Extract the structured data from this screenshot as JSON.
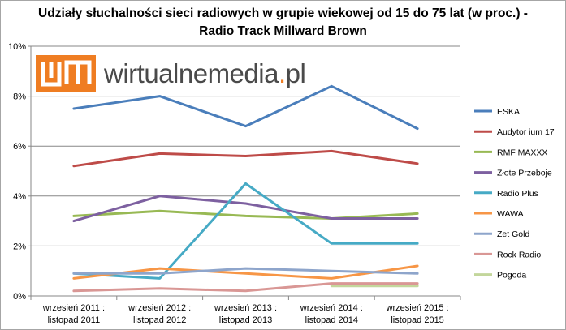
{
  "chart_data": {
    "type": "line",
    "title_line1": "Udziały słuchalności sieci radiowych w grupie wiekowej od 15 do 75 lat (w proc.) -",
    "title_line2": "Radio Track Millward Brown",
    "categories": [
      [
        "wrzesień 2011 :",
        "listopad 2011"
      ],
      [
        "wrzesień 2012 :",
        "listopad 2012"
      ],
      [
        "wrzesień 2013 :",
        "listopad 2013"
      ],
      [
        "wrzesień 2014 :",
        "listopad 2014"
      ],
      [
        "wrzesień 2015 :",
        "listopad 2015"
      ]
    ],
    "yticks": [
      "0%",
      "2%",
      "4%",
      "6%",
      "8%",
      "10%"
    ],
    "ylim": [
      0,
      10
    ],
    "grid": true,
    "legend_position": "right",
    "series": [
      {
        "name": "ESKA",
        "color": "#4a7ebb",
        "values": [
          7.5,
          8.0,
          6.8,
          8.4,
          6.7
        ]
      },
      {
        "name": "Audytor ium 17",
        "color": "#be4b48",
        "values": [
          5.2,
          5.7,
          5.6,
          5.8,
          5.3
        ]
      },
      {
        "name": "RMF MAXXX",
        "color": "#98b954",
        "values": [
          3.2,
          3.4,
          3.2,
          3.1,
          3.3
        ]
      },
      {
        "name": "Złote Przeboje",
        "color": "#7d60a0",
        "values": [
          3.0,
          4.0,
          3.7,
          3.1,
          3.1
        ]
      },
      {
        "name": "Radio Plus",
        "color": "#46aac5",
        "values": [
          0.9,
          0.7,
          4.5,
          2.1,
          2.1
        ]
      },
      {
        "name": "WAWA",
        "color": "#f79646",
        "values": [
          0.7,
          1.1,
          0.9,
          0.7,
          1.2
        ]
      },
      {
        "name": "Zet Gold",
        "color": "#8ea5cb",
        "values": [
          0.9,
          0.9,
          1.1,
          1.0,
          0.9
        ]
      },
      {
        "name": "Rock Radio",
        "color": "#d99795",
        "values": [
          0.2,
          0.3,
          0.2,
          0.5,
          0.5
        ]
      },
      {
        "name": "Pogoda",
        "color": "#c3d69b",
        "values": [
          null,
          null,
          null,
          0.4,
          0.4
        ]
      }
    ]
  },
  "watermark": {
    "text_main": "wirtualnemedia",
    "text_dot": ".",
    "text_tld": "pl",
    "logo_color": "#ef7d22"
  }
}
